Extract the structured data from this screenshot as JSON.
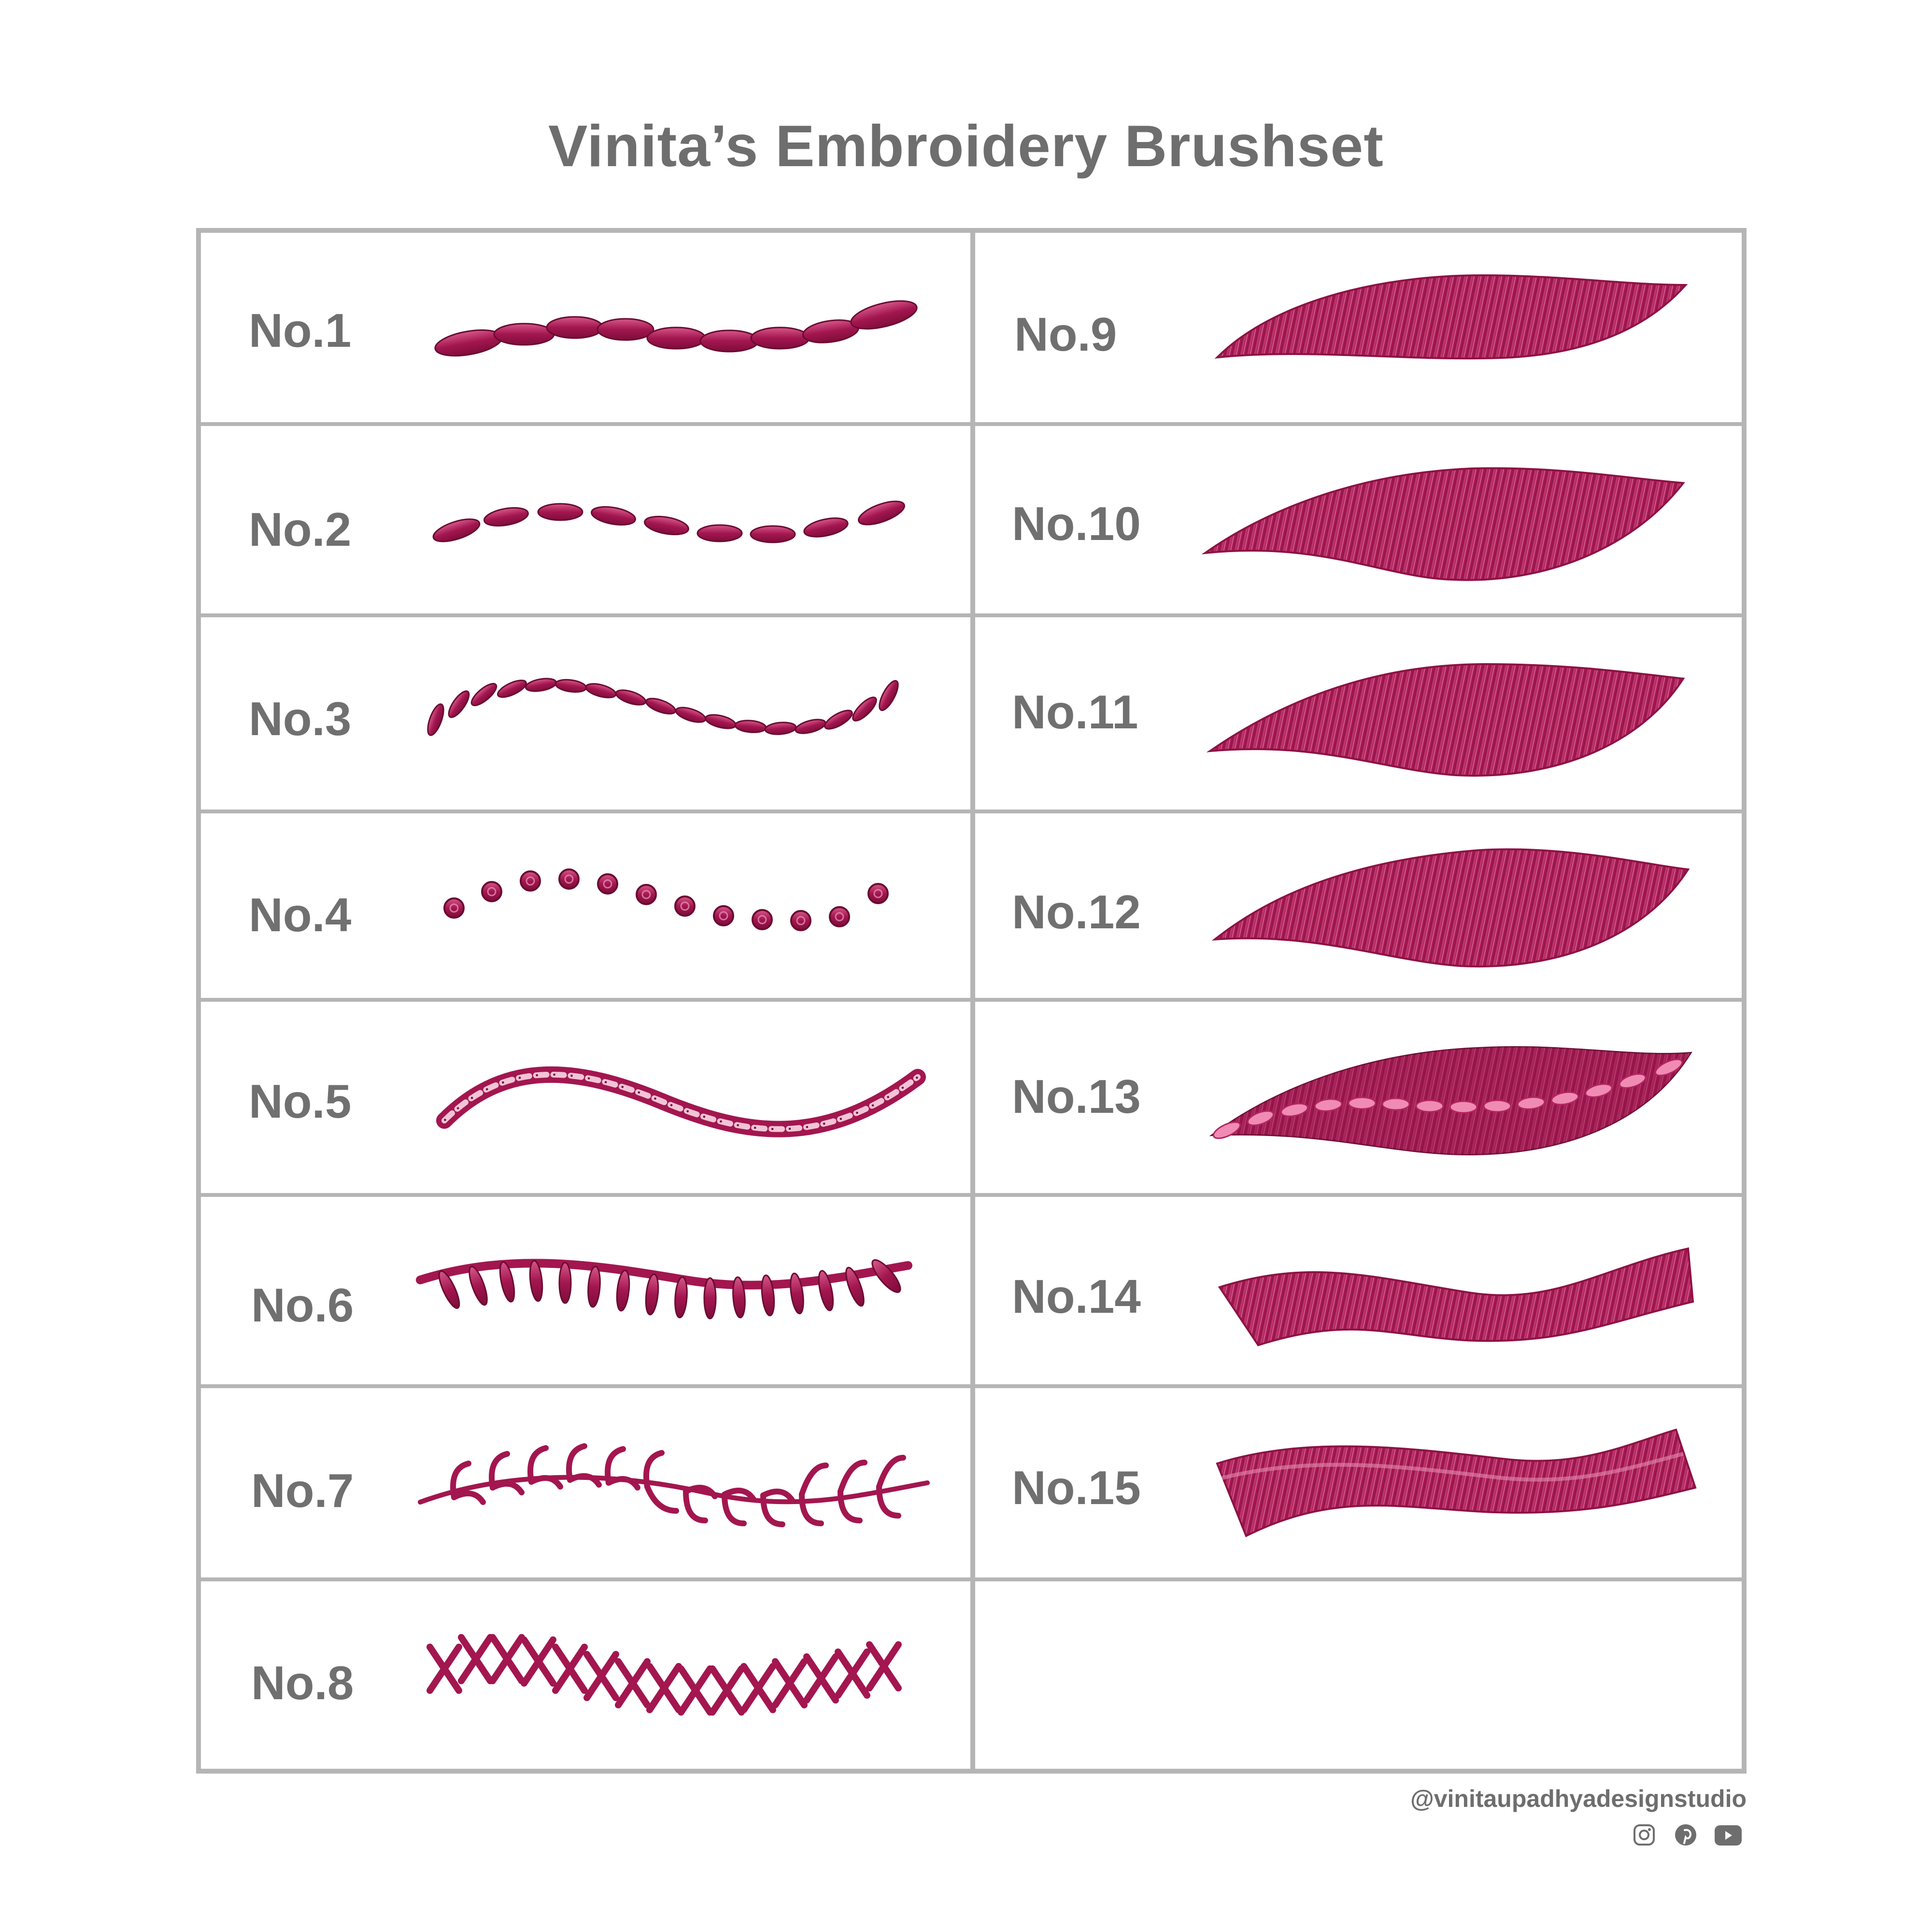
{
  "title": "Vinita’s Embroidery Brushset",
  "colors": {
    "thread": "#a3164f",
    "thread_dark": "#7e0d3b",
    "thread_light": "#d6578a",
    "grid": "#b5b5b5",
    "text": "#707070"
  },
  "brushes_left": [
    {
      "label": "No.1",
      "style": "satin-ovals"
    },
    {
      "label": "No.2",
      "style": "separated-ovals"
    },
    {
      "label": "No.3",
      "style": "seed-stitches"
    },
    {
      "label": "No.4",
      "style": "french-knots"
    },
    {
      "label": "No.5",
      "style": "chain-stitch"
    },
    {
      "label": "No.6",
      "style": "blanket-stitch"
    },
    {
      "label": "No.7",
      "style": "fern-leaves"
    },
    {
      "label": "No.8",
      "style": "cross-stitch"
    }
  ],
  "brushes_right": [
    {
      "label": "No.9",
      "style": "long-short-fill"
    },
    {
      "label": "No.10",
      "style": "long-short-fill"
    },
    {
      "label": "No.11",
      "style": "satin-fill"
    },
    {
      "label": "No.12",
      "style": "long-short-fill"
    },
    {
      "label": "No.13",
      "style": "fill-with-center-ovals"
    },
    {
      "label": "No.14",
      "style": "wave-band"
    },
    {
      "label": "No.15",
      "style": "wave-band"
    }
  ],
  "footer": {
    "handle": "@vinitaupadhyadesignstudio",
    "icons": [
      "instagram-icon",
      "pinterest-icon",
      "youtube-icon"
    ]
  }
}
